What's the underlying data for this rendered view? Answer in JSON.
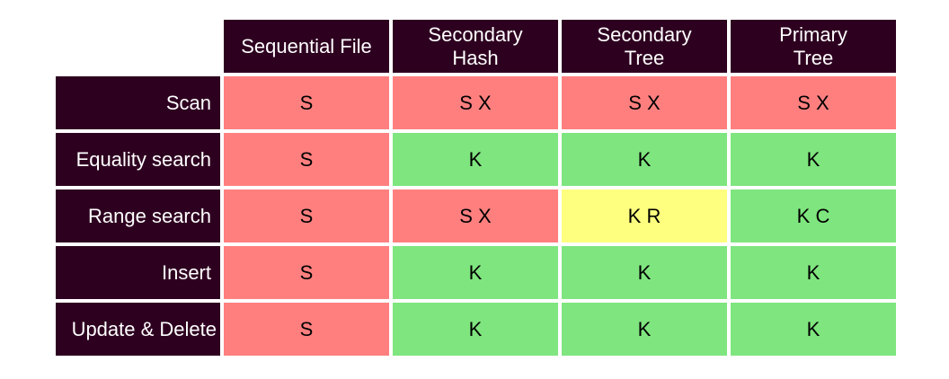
{
  "colors": {
    "header_bg": "#2e0020",
    "header_text": "#ffffff",
    "red": "#ff7f7f",
    "green": "#7fe57f",
    "yellow": "#ffff7f"
  },
  "columns": [
    {
      "line1": "Sequential File",
      "line2": ""
    },
    {
      "line1": "Secondary",
      "line2": "Hash"
    },
    {
      "line1": "Secondary",
      "line2": "Tree"
    },
    {
      "line1": "Primary",
      "line2": "Tree"
    }
  ],
  "rows": [
    {
      "label": "Scan",
      "cells": [
        {
          "text": "S",
          "color": "red"
        },
        {
          "text": "S X",
          "color": "red"
        },
        {
          "text": "S X",
          "color": "red"
        },
        {
          "text": "S X",
          "color": "red"
        }
      ]
    },
    {
      "label": "Equality search",
      "cells": [
        {
          "text": "S",
          "color": "red"
        },
        {
          "text": "K",
          "color": "green"
        },
        {
          "text": "K",
          "color": "green"
        },
        {
          "text": "K",
          "color": "green"
        }
      ]
    },
    {
      "label": "Range search",
      "cells": [
        {
          "text": "S",
          "color": "red"
        },
        {
          "text": "S X",
          "color": "red"
        },
        {
          "text": "K R",
          "color": "yellow"
        },
        {
          "text": "K C",
          "color": "green"
        }
      ]
    },
    {
      "label": "Insert",
      "cells": [
        {
          "text": "S",
          "color": "red"
        },
        {
          "text": "K",
          "color": "green"
        },
        {
          "text": "K",
          "color": "green"
        },
        {
          "text": "K",
          "color": "green"
        }
      ]
    },
    {
      "label": "Update & Delete",
      "cells": [
        {
          "text": "S",
          "color": "red"
        },
        {
          "text": "K",
          "color": "green"
        },
        {
          "text": "K",
          "color": "green"
        },
        {
          "text": "K",
          "color": "green"
        }
      ]
    }
  ]
}
